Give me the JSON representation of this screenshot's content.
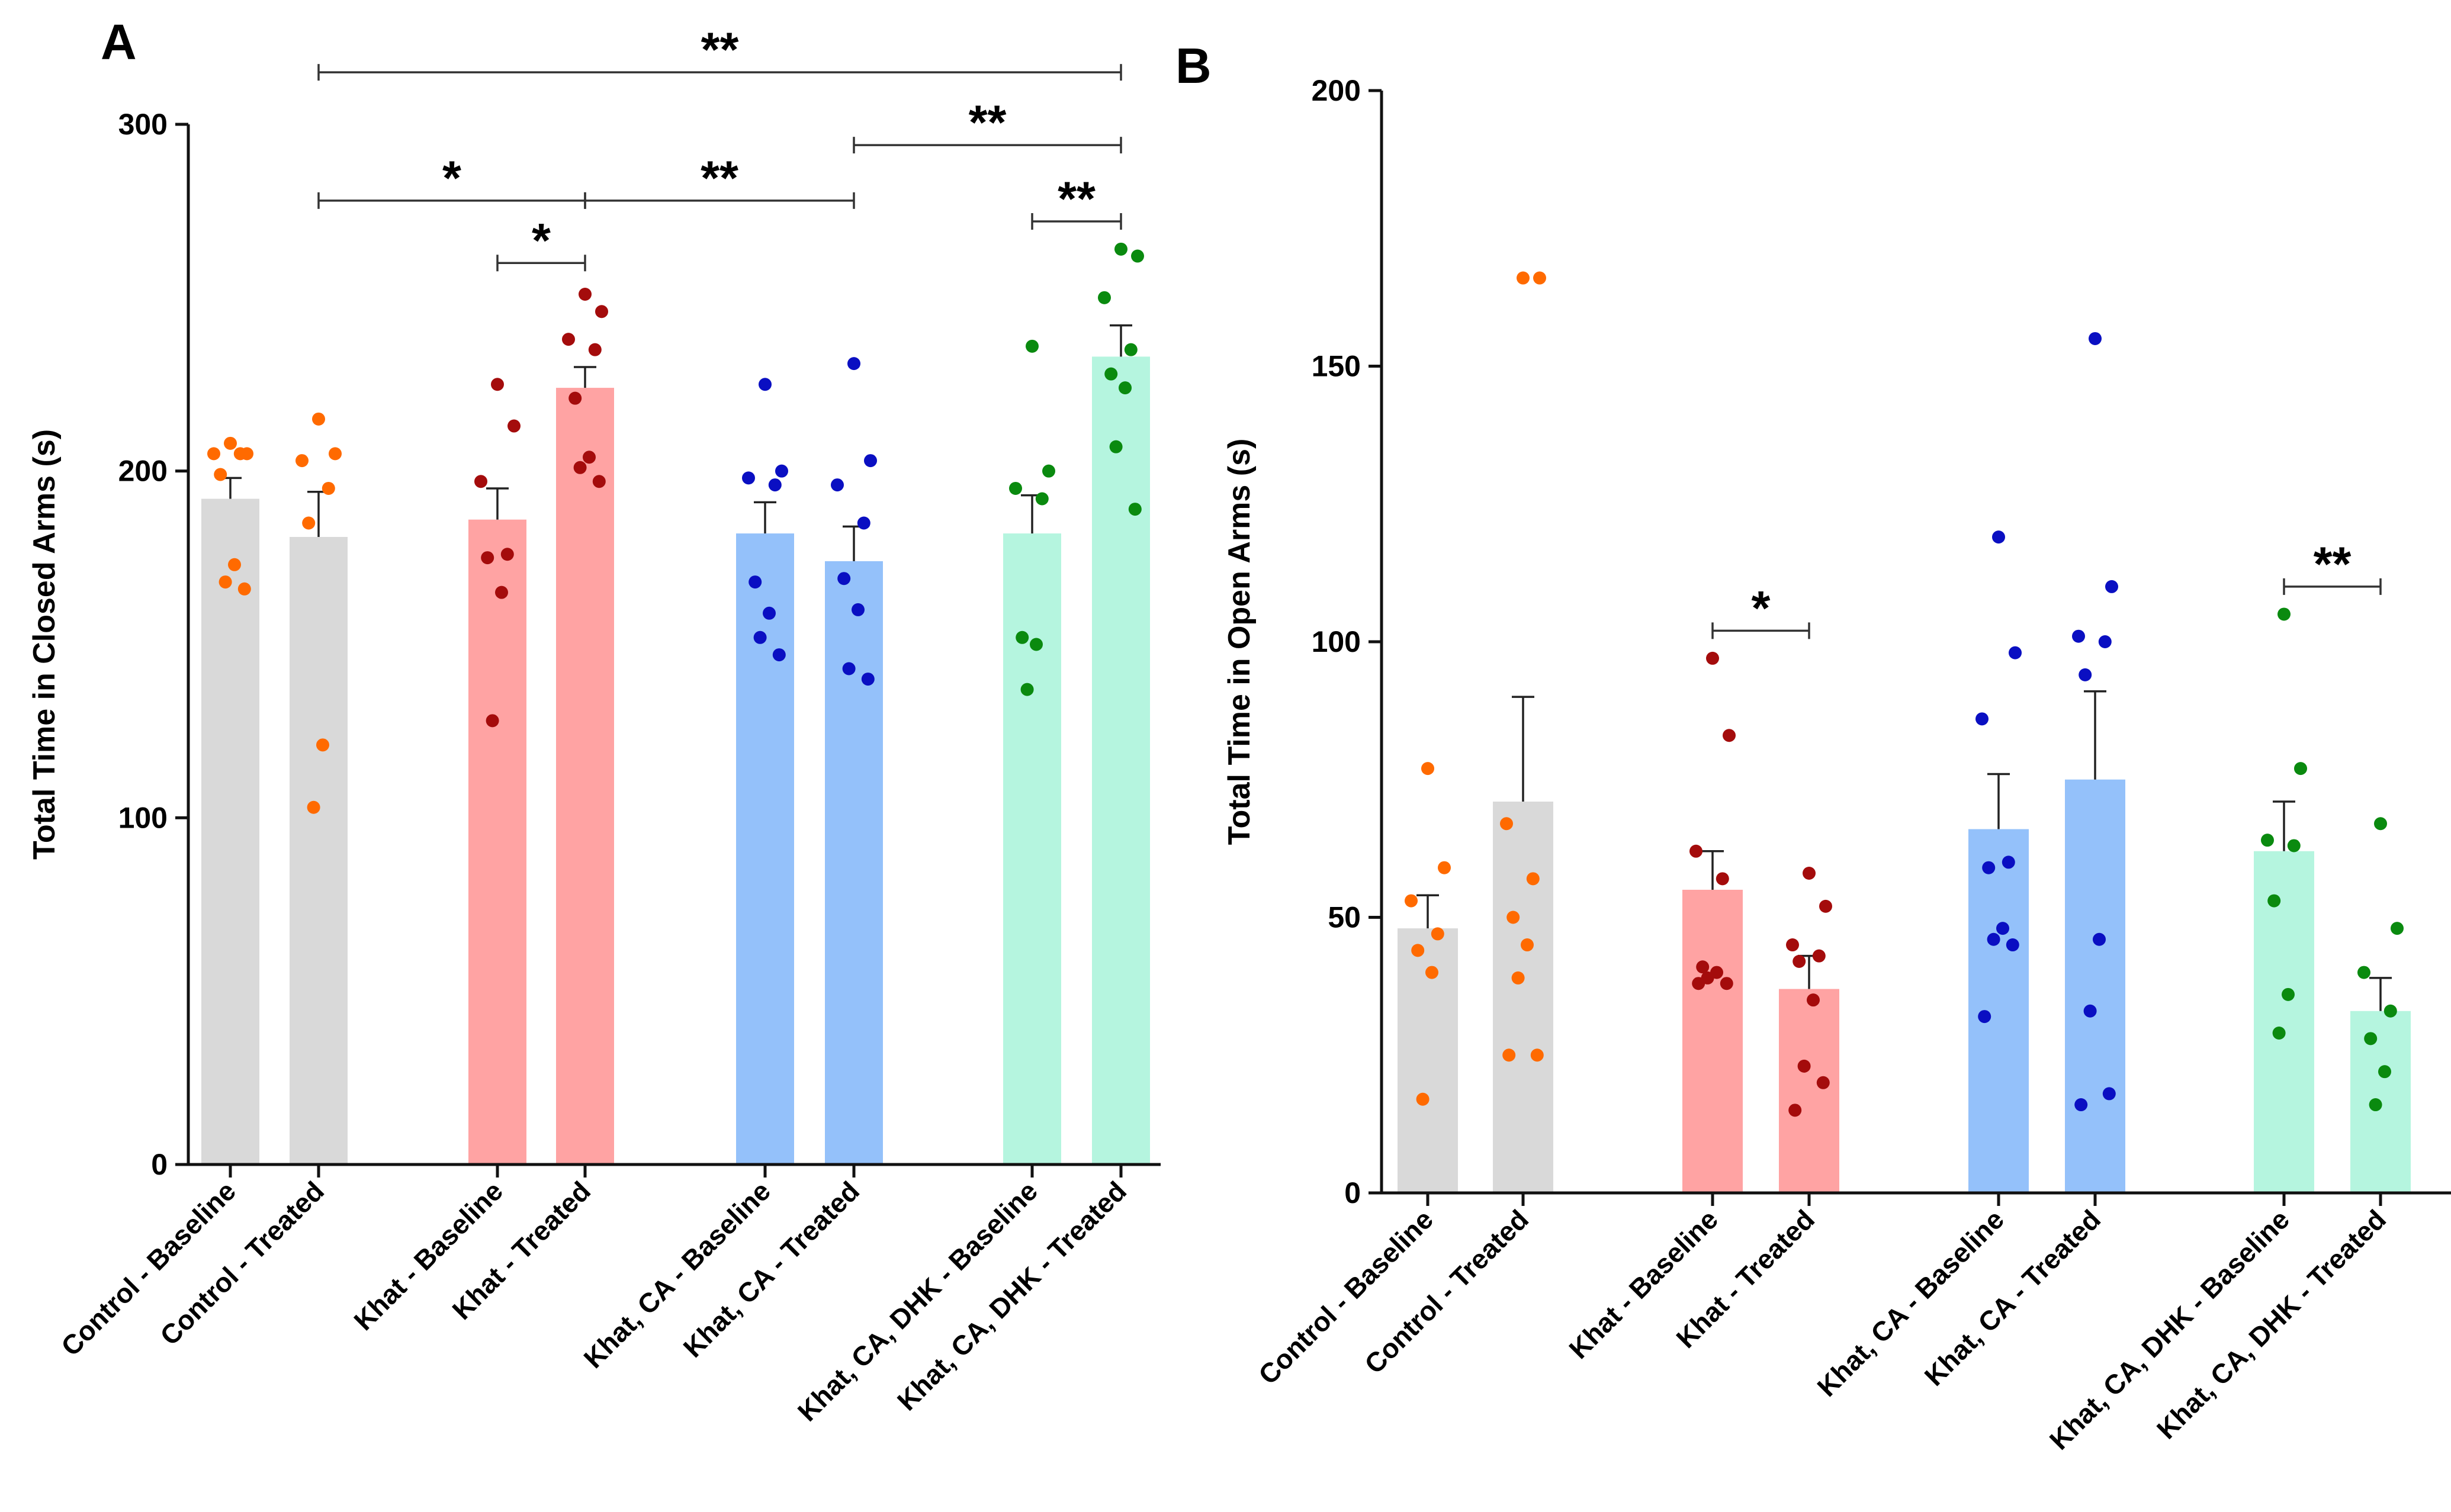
{
  "figure": {
    "panel_letters": [
      "A",
      "B"
    ]
  },
  "chart_data": [
    {
      "type": "bar",
      "panel": "A",
      "title": "",
      "xlabel": "",
      "ylabel": "Total Time in Closed Arms (s)",
      "ylim": [
        0,
        300
      ],
      "yticks": [
        0,
        100,
        200,
        300
      ],
      "grid": false,
      "categories": [
        "Control - Baseline",
        "Control - Treated",
        "Khat - Baseline",
        "Khat - Treated",
        "Khat, CA - Baseline",
        "Khat, CA - Treated",
        "Khat, CA, DHK - Baseline",
        "Khat, CA, DHK - Treated"
      ],
      "groups": [
        0,
        0,
        1,
        1,
        2,
        2,
        3,
        3
      ],
      "means": [
        192,
        181,
        186,
        224,
        182,
        174,
        182,
        233
      ],
      "sem": [
        6,
        13,
        9,
        6,
        9,
        10,
        11,
        9
      ],
      "points": [
        [
          208,
          205,
          205,
          205,
          199,
          173,
          168,
          166
        ],
        [
          215,
          205,
          203,
          195,
          185,
          121,
          103
        ],
        [
          225,
          213,
          197,
          176,
          175,
          165,
          128
        ],
        [
          251,
          246,
          238,
          235,
          221,
          204,
          201,
          197
        ],
        [
          225,
          200,
          198,
          196,
          168,
          159,
          152,
          147
        ],
        [
          231,
          203,
          196,
          185,
          169,
          160,
          143,
          140
        ],
        [
          236,
          200,
          195,
          192,
          152,
          150,
          137
        ],
        [
          264,
          262,
          250,
          235,
          228,
          224,
          207,
          189
        ]
      ],
      "bar_colors": [
        "#d9d9d9",
        "#d9d9d9",
        "#ffa3a3",
        "#ffa3a3",
        "#94c1fa",
        "#94c1fa",
        "#b5f5df",
        "#b5f5df"
      ],
      "point_colors": [
        "#ff6a00",
        "#ff6a00",
        "#a40c0c",
        "#a40c0c",
        "#0a0fc2",
        "#0a0fc2",
        "#0a8a0f",
        "#0a8a0f"
      ],
      "significance": [
        {
          "from": 1,
          "to": 7,
          "label": "**",
          "y": 315
        },
        {
          "from": 1,
          "to": 3,
          "label": "*",
          "y": 278
        },
        {
          "from": 3,
          "to": 5,
          "label": "**",
          "y": 278
        },
        {
          "from": 5,
          "to": 7,
          "label": "**",
          "y": 294
        },
        {
          "from": 2,
          "to": 3,
          "label": "*",
          "y": 260
        },
        {
          "from": 6,
          "to": 7,
          "label": "**",
          "y": 272
        }
      ]
    },
    {
      "type": "bar",
      "panel": "B",
      "title": "",
      "xlabel": "",
      "ylabel": "Total Time in Open Arms (s)",
      "ylim": [
        0,
        200
      ],
      "yticks": [
        0,
        50,
        100,
        150,
        200
      ],
      "grid": false,
      "categories": [
        "Control - Baseline",
        "Control - Treated",
        "Khat - Baseline",
        "Khat - Treated",
        "Khat, CA - Baseline",
        "Khat, CA - Treated",
        "Khat, CA, DHK - Baseline",
        "Khat, CA, DHK - Treated"
      ],
      "groups": [
        0,
        0,
        1,
        1,
        2,
        2,
        3,
        3
      ],
      "means": [
        48,
        71,
        55,
        37,
        66,
        75,
        62,
        33
      ],
      "sem": [
        6,
        19,
        7,
        6,
        10,
        16,
        9,
        6
      ],
      "points": [
        [
          77,
          59,
          53,
          47,
          44,
          40,
          17
        ],
        [
          166,
          166,
          67,
          57,
          50,
          45,
          39,
          25,
          25
        ],
        [
          97,
          83,
          62,
          57,
          41,
          40,
          39,
          38,
          38
        ],
        [
          58,
          52,
          45,
          43,
          42,
          35,
          23,
          20,
          15
        ],
        [
          119,
          98,
          86,
          60,
          59,
          48,
          46,
          45,
          32
        ],
        [
          155,
          110,
          101,
          100,
          94,
          46,
          33,
          18,
          16
        ],
        [
          105,
          77,
          64,
          63,
          53,
          36,
          29
        ],
        [
          67,
          48,
          40,
          33,
          28,
          22,
          16
        ]
      ],
      "bar_colors": [
        "#d9d9d9",
        "#d9d9d9",
        "#ffa3a3",
        "#ffa3a3",
        "#94c1fa",
        "#94c1fa",
        "#b5f5df",
        "#b5f5df"
      ],
      "point_colors": [
        "#ff6a00",
        "#ff6a00",
        "#a40c0c",
        "#a40c0c",
        "#0a0fc2",
        "#0a0fc2",
        "#0a8a0f",
        "#0a8a0f"
      ],
      "significance": [
        {
          "from": 2,
          "to": 3,
          "label": "*",
          "y": 102
        },
        {
          "from": 6,
          "to": 7,
          "label": "**",
          "y": 110
        }
      ]
    }
  ]
}
